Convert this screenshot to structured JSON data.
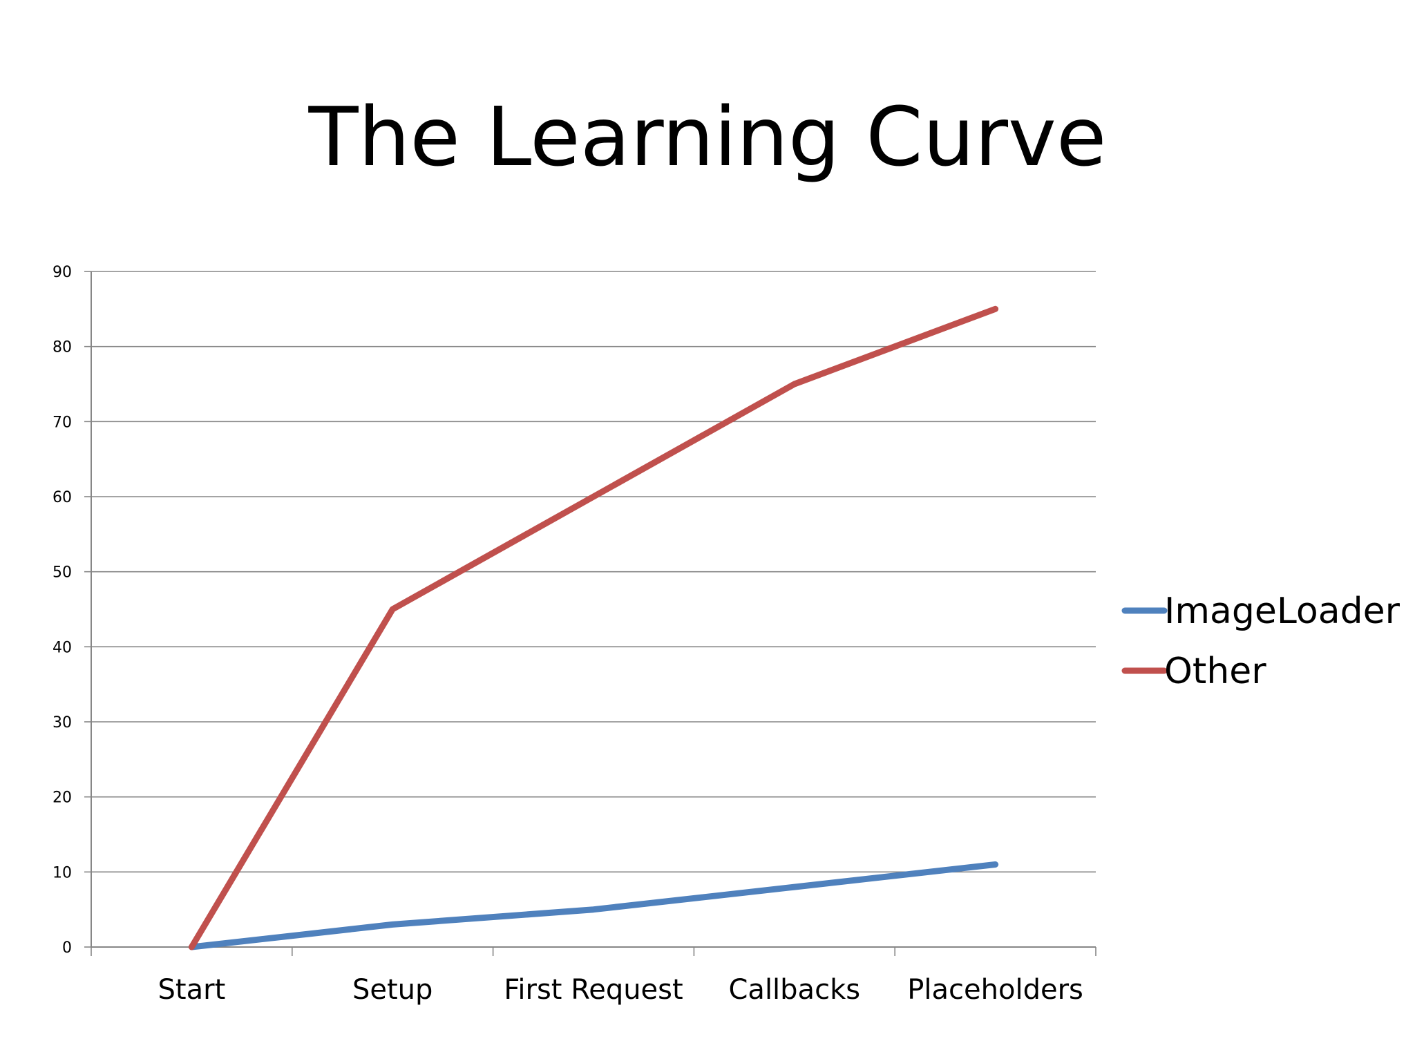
{
  "slide": {
    "title": "The Learning Curve"
  },
  "chart_data": {
    "type": "line",
    "title": "",
    "xlabel": "",
    "ylabel": "",
    "categories": [
      "Start",
      "Setup",
      "First Request",
      "Callbacks",
      "Placeholders"
    ],
    "ylim": [
      0,
      90
    ],
    "yticks": [
      0,
      10,
      20,
      30,
      40,
      50,
      60,
      70,
      80,
      90
    ],
    "grid": true,
    "legend": "right",
    "series": [
      {
        "name": "ImageLoader",
        "color": "#4F81BD",
        "values": [
          0,
          3,
          5,
          8,
          11
        ]
      },
      {
        "name": "Other",
        "color": "#C0504D",
        "values": [
          0,
          45,
          60,
          75,
          85
        ]
      }
    ]
  }
}
